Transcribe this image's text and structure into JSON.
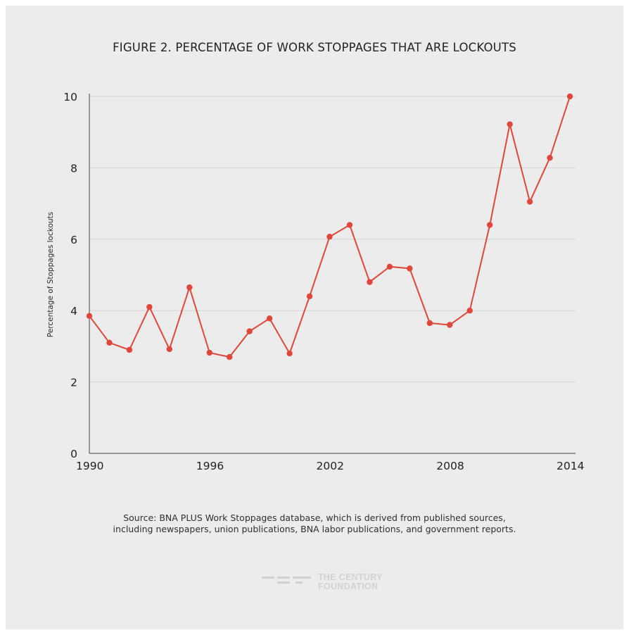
{
  "chart_data": {
    "type": "line",
    "title": "FIGURE 2. PERCENTAGE OF WORK STOPPAGES THAT ARE LOCKOUTS",
    "xlabel": "",
    "ylabel": "Percentage of Stoppages lockouts",
    "x": [
      1990,
      1991,
      1992,
      1993,
      1994,
      1995,
      1996,
      1997,
      1998,
      1999,
      2000,
      2001,
      2002,
      2003,
      2004,
      2005,
      2006,
      2007,
      2008,
      2009,
      2010,
      2011,
      2012,
      2013,
      2014
    ],
    "series": [
      {
        "values": [
          3.85,
          3.1,
          2.9,
          4.1,
          2.92,
          4.65,
          2.82,
          2.7,
          3.42,
          3.78,
          2.8,
          4.4,
          6.07,
          6.4,
          4.8,
          5.23,
          5.18,
          3.65,
          3.6,
          4.0,
          6.4,
          9.22,
          7.05,
          8.28,
          10.0
        ],
        "color": "#e0463a"
      }
    ],
    "xticks": [
      1990,
      1996,
      2002,
      2008,
      2014
    ],
    "yticks": [
      0,
      2,
      4,
      6,
      8,
      10
    ],
    "xlim": [
      1990,
      2014
    ],
    "ylim": [
      0,
      10
    ],
    "grid": "horizontal",
    "legend": "none"
  },
  "source": {
    "line1": "Source:  BNA PLUS Work Stoppages database, which is derived from published sources,",
    "line2": "including newspapers, union publications, BNA labor publications, and government reports."
  },
  "logo": {
    "line1": "THE CENTURY",
    "line2": "FOUNDATION"
  },
  "colors": {
    "background": "#ececec",
    "series": "#e0463a",
    "grid": "#d4d4d4"
  }
}
